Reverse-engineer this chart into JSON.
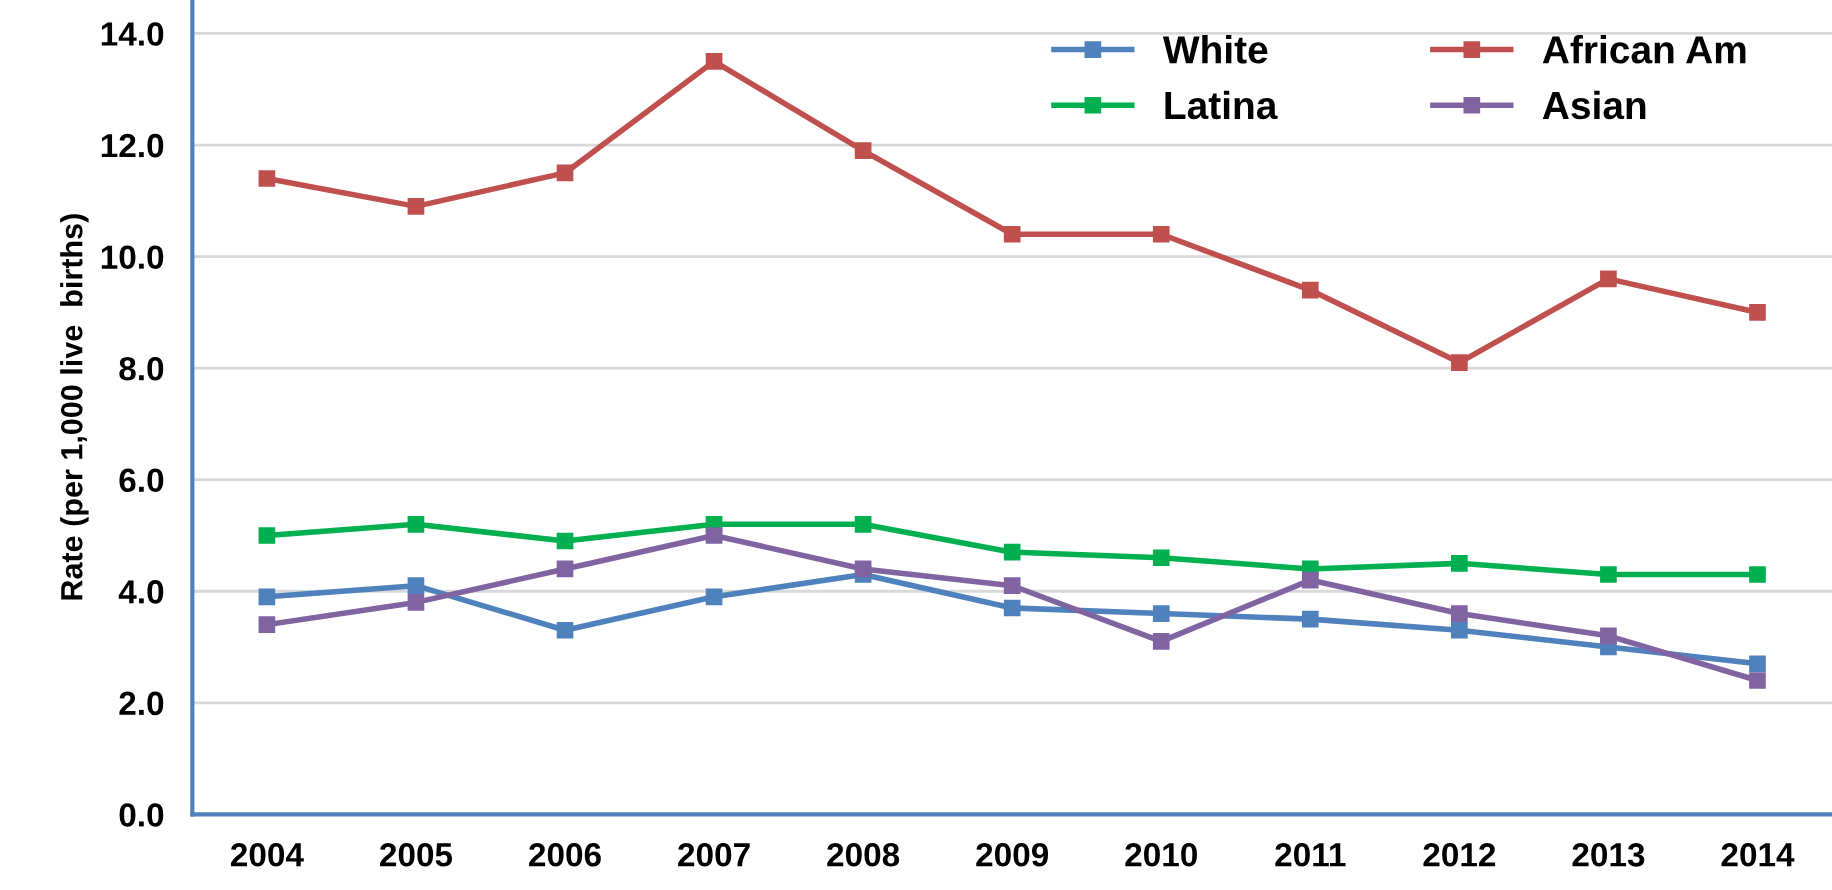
{
  "chart_data": {
    "type": "line",
    "ylabel": "Rate (per 1,000 live  births)",
    "categories": [
      "2004",
      "2005",
      "2006",
      "2007",
      "2008",
      "2009",
      "2010",
      "2011",
      "2012",
      "2013",
      "2014"
    ],
    "series": [
      {
        "name": "White",
        "color": "#4f81bd",
        "values": [
          3.9,
          4.1,
          3.3,
          3.9,
          4.3,
          3.7,
          3.6,
          3.5,
          3.3,
          3.0,
          2.7
        ]
      },
      {
        "name": "African Am",
        "color": "#c0504d",
        "values": [
          11.4,
          10.9,
          11.5,
          13.5,
          11.9,
          10.4,
          10.4,
          9.4,
          8.1,
          9.6,
          9.0
        ]
      },
      {
        "name": "Latina",
        "color": "#00b050",
        "values": [
          5.0,
          5.2,
          4.9,
          5.2,
          5.2,
          4.7,
          4.6,
          4.4,
          4.5,
          4.3,
          4.3
        ]
      },
      {
        "name": "Asian",
        "color": "#8064a2",
        "values": [
          3.4,
          3.8,
          4.4,
          5.0,
          4.4,
          4.1,
          3.1,
          4.2,
          3.6,
          3.2,
          2.4
        ]
      }
    ],
    "ylim": [
      0,
      14.6
    ],
    "yticks": [
      {
        "value": 0,
        "label": "0.0"
      },
      {
        "value": 2,
        "label": "2.0"
      },
      {
        "value": 4,
        "label": "4.0"
      },
      {
        "value": 6,
        "label": "6.0"
      },
      {
        "value": 8,
        "label": "8.0"
      },
      {
        "value": 10,
        "label": "10.0"
      },
      {
        "value": 12,
        "label": "12.0"
      },
      {
        "value": 14,
        "label": "14.0"
      }
    ],
    "grid": "y",
    "legend": "top right",
    "marker": "square",
    "line_style": "solid"
  }
}
